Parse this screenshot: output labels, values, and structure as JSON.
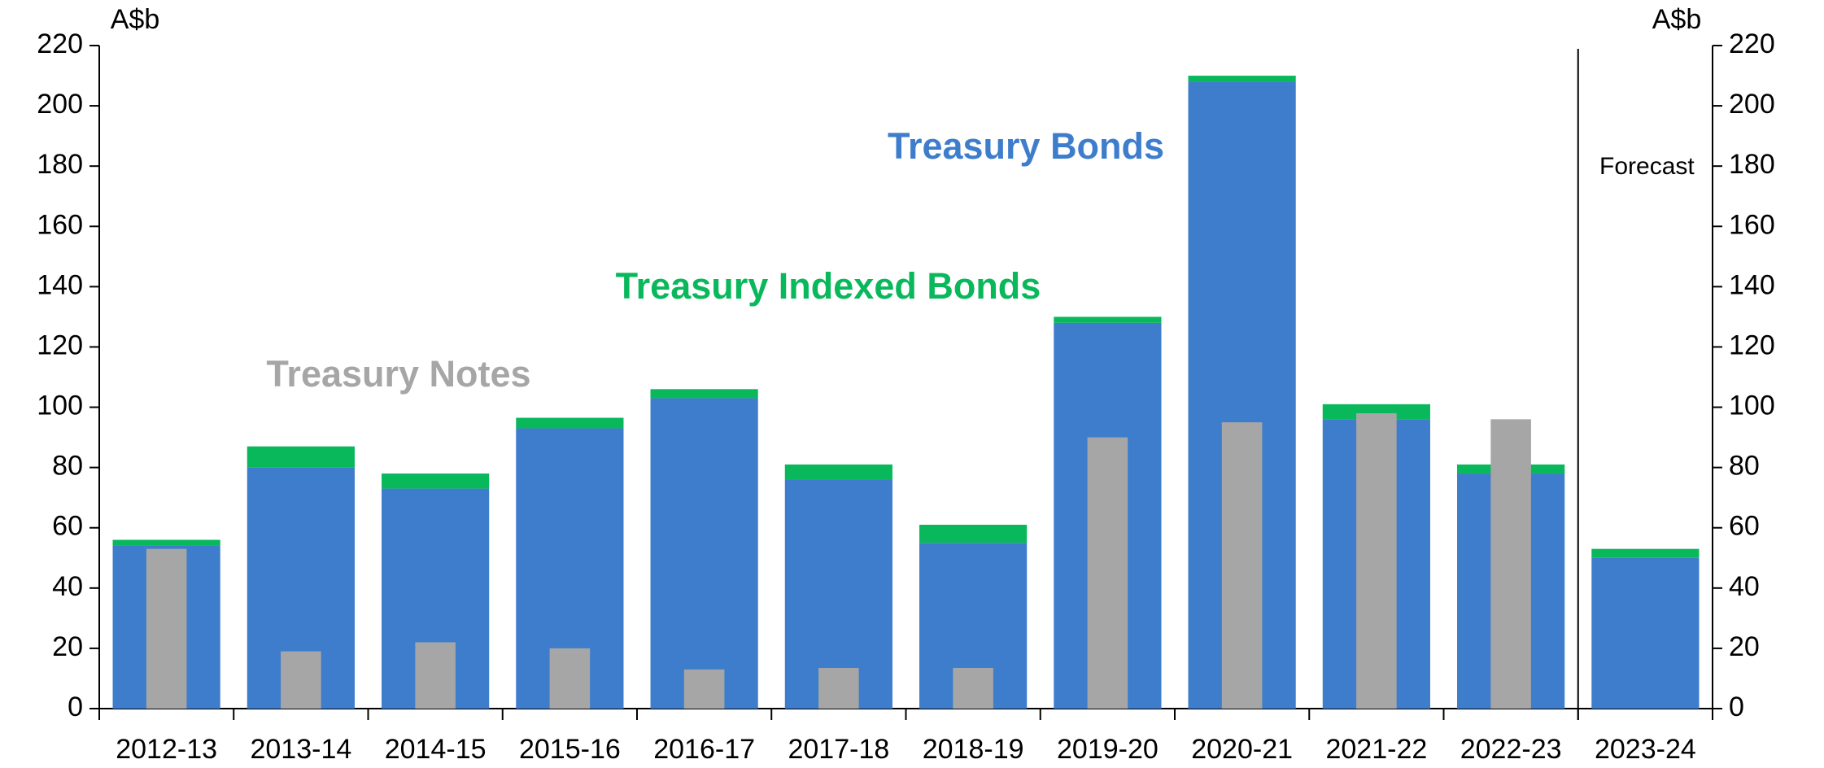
{
  "chart_data": {
    "type": "bar",
    "stacked": true,
    "y_label": "A$b",
    "y2_label": "A$b",
    "categories": [
      "2012-13",
      "2013-14",
      "2014-15",
      "2015-16",
      "2016-17",
      "2017-18",
      "2018-19",
      "2019-20",
      "2020-21",
      "2021-22",
      "2022-23",
      "2023-24"
    ],
    "series": [
      {
        "name": "Treasury Bonds",
        "color": "#3d7dcc",
        "values": [
          54,
          80,
          73,
          93,
          103,
          76,
          55,
          128,
          208,
          96,
          78,
          50
        ]
      },
      {
        "name": "Treasury Indexed Bonds",
        "color": "#0ab85c",
        "values": [
          2,
          7,
          5,
          3.5,
          3,
          5,
          6,
          2,
          2,
          5,
          3,
          3
        ]
      },
      {
        "name": "Treasury Notes",
        "color": "#a6a6a6",
        "values": [
          53,
          19,
          22,
          20,
          13,
          13.5,
          13.5,
          90,
          95,
          98,
          96,
          null
        ]
      }
    ],
    "annotations": [
      "Forecast"
    ],
    "ylim": [
      0,
      220
    ],
    "yticks": [
      0,
      20,
      40,
      60,
      80,
      100,
      120,
      140,
      160,
      180,
      200,
      220
    ],
    "y2lim": [
      0,
      220
    ],
    "y2ticks": [
      0,
      20,
      40,
      60,
      80,
      100,
      120,
      140,
      160,
      180,
      200,
      220
    ],
    "grid": false
  }
}
